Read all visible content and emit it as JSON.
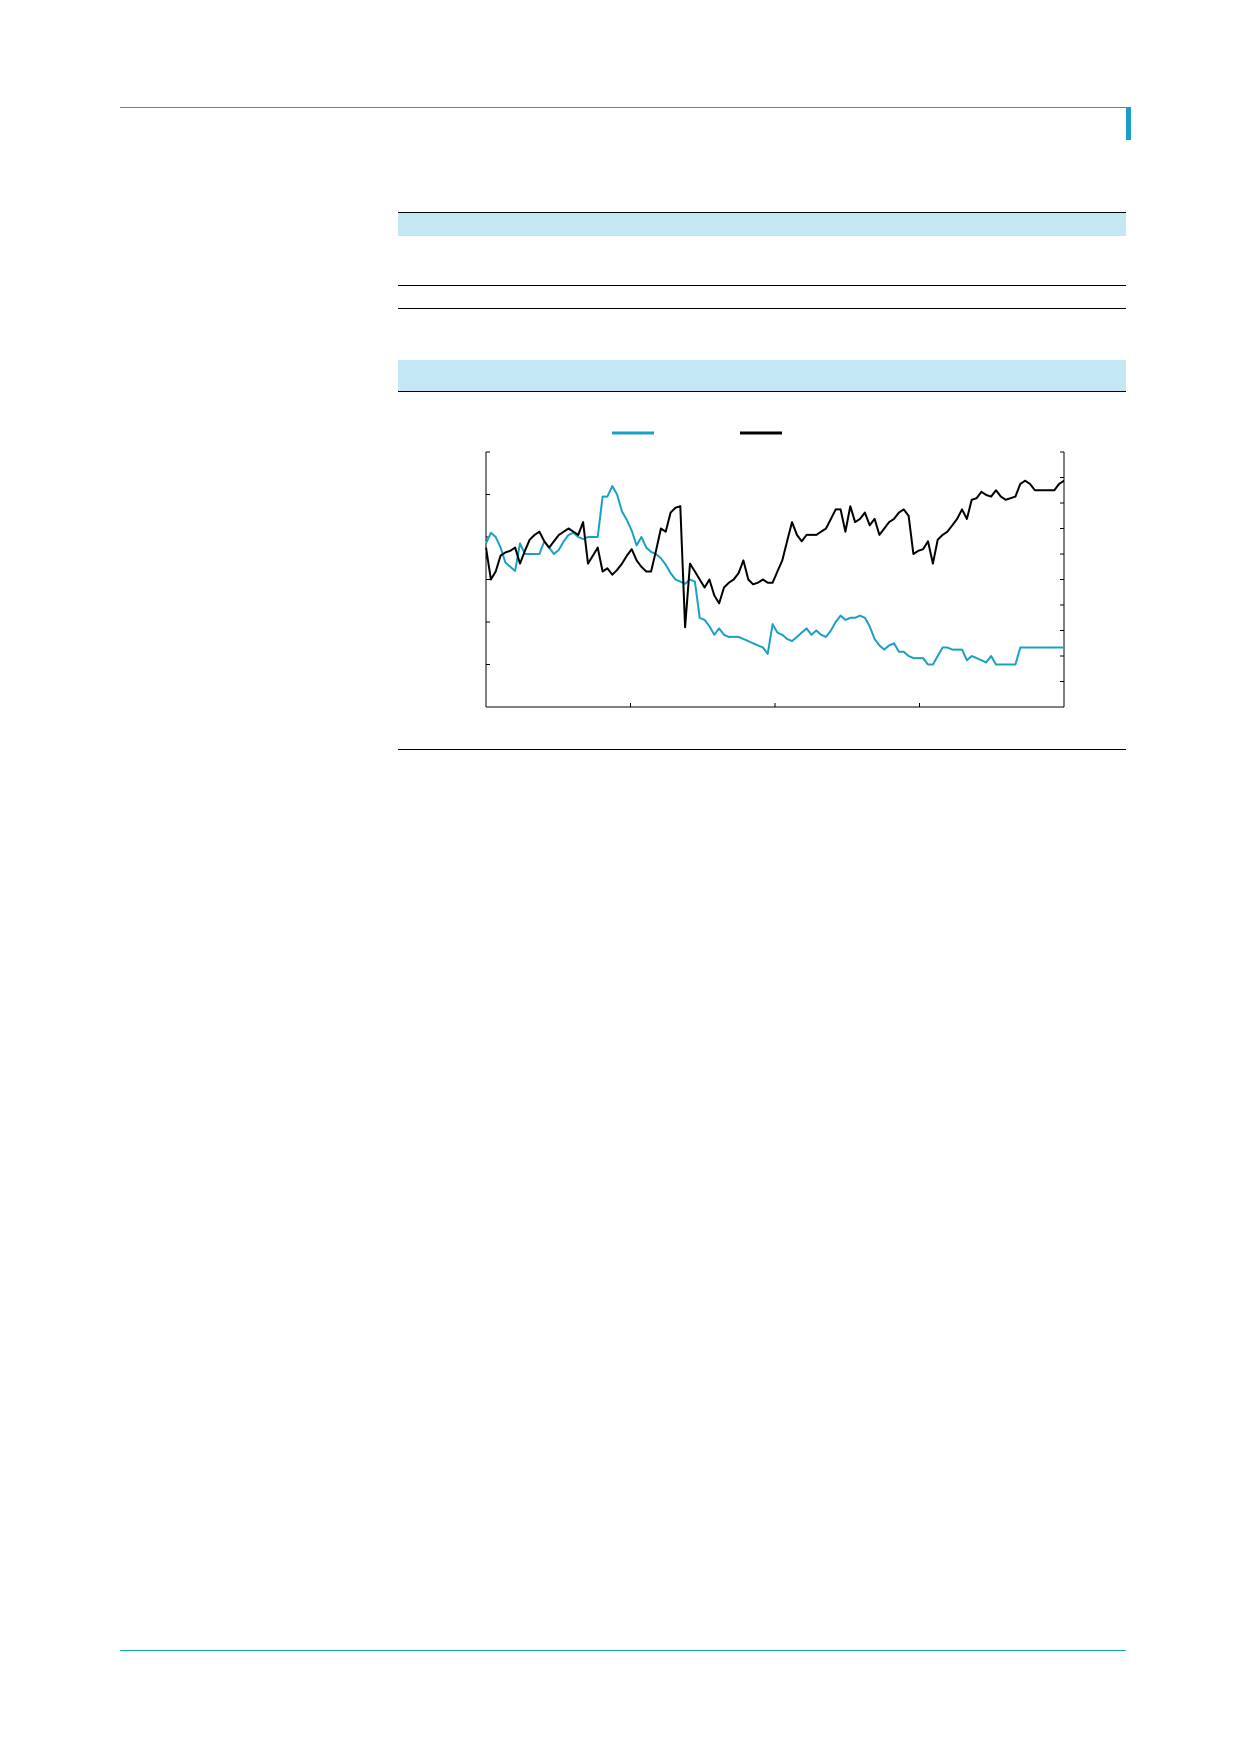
{
  "colors": {
    "accent": "#1aa0c6",
    "band": "#c4e8f3"
  },
  "chart_data": {
    "type": "line",
    "title": "",
    "xlabel": "",
    "ylabel": "",
    "legend_position": "top-center",
    "grid": false,
    "x_count": 120,
    "xlim": [
      0,
      119
    ],
    "ylim": [
      0,
      120
    ],
    "y2lim": [
      0,
      160
    ],
    "series": [
      {
        "name": "",
        "axis": "left",
        "color": "#1aa0c6",
        "values": [
          77,
          82,
          80,
          75,
          68,
          66,
          64,
          77,
          72,
          72,
          72,
          72,
          78,
          75,
          72,
          74,
          78,
          81,
          82,
          80,
          79,
          80,
          80,
          80,
          99,
          99,
          104,
          100,
          92,
          88,
          83,
          76,
          80,
          75,
          73,
          72,
          70,
          67,
          63,
          60,
          59,
          58,
          60,
          59,
          42,
          41,
          38,
          34,
          37,
          34,
          33,
          33,
          33,
          32,
          31,
          30,
          29,
          28,
          25,
          39,
          35,
          34,
          32,
          31,
          33,
          35,
          37,
          34,
          36,
          34,
          33,
          36,
          40,
          43,
          41,
          42,
          42,
          43,
          42,
          38,
          32,
          29,
          27,
          29,
          30,
          26,
          26,
          24,
          23,
          23,
          23,
          20,
          20,
          24,
          28,
          28,
          27,
          27,
          27,
          22,
          24,
          23,
          22,
          21,
          24,
          20,
          20,
          20,
          20,
          20,
          28,
          28,
          28,
          28,
          28,
          28,
          28,
          28,
          28,
          28
        ]
      },
      {
        "name": "",
        "axis": "right",
        "color": "#000000",
        "values": [
          100,
          80,
          85,
          95,
          97,
          98,
          100,
          90,
          98,
          105,
          108,
          110,
          104,
          100,
          104,
          108,
          110,
          112,
          110,
          108,
          116,
          90,
          95,
          100,
          85,
          87,
          83,
          86,
          90,
          95,
          99,
          92,
          88,
          85,
          85,
          98,
          112,
          110,
          122,
          125,
          126,
          50,
          90,
          85,
          80,
          75,
          80,
          70,
          65,
          75,
          78,
          80,
          84,
          92,
          80,
          77,
          78,
          80,
          78,
          78,
          85,
          92,
          104,
          116,
          108,
          104,
          108,
          108,
          108,
          110,
          112,
          118,
          124,
          124,
          110,
          126,
          116,
          118,
          122,
          114,
          118,
          108,
          112,
          116,
          118,
          122,
          124,
          120,
          96,
          98,
          99,
          104,
          90,
          105,
          108,
          110,
          114,
          118,
          124,
          118,
          130,
          131,
          135,
          133,
          132,
          136,
          132,
          130,
          131,
          132,
          140,
          142,
          140,
          136,
          136,
          136,
          136,
          136,
          140,
          142
        ]
      }
    ]
  }
}
